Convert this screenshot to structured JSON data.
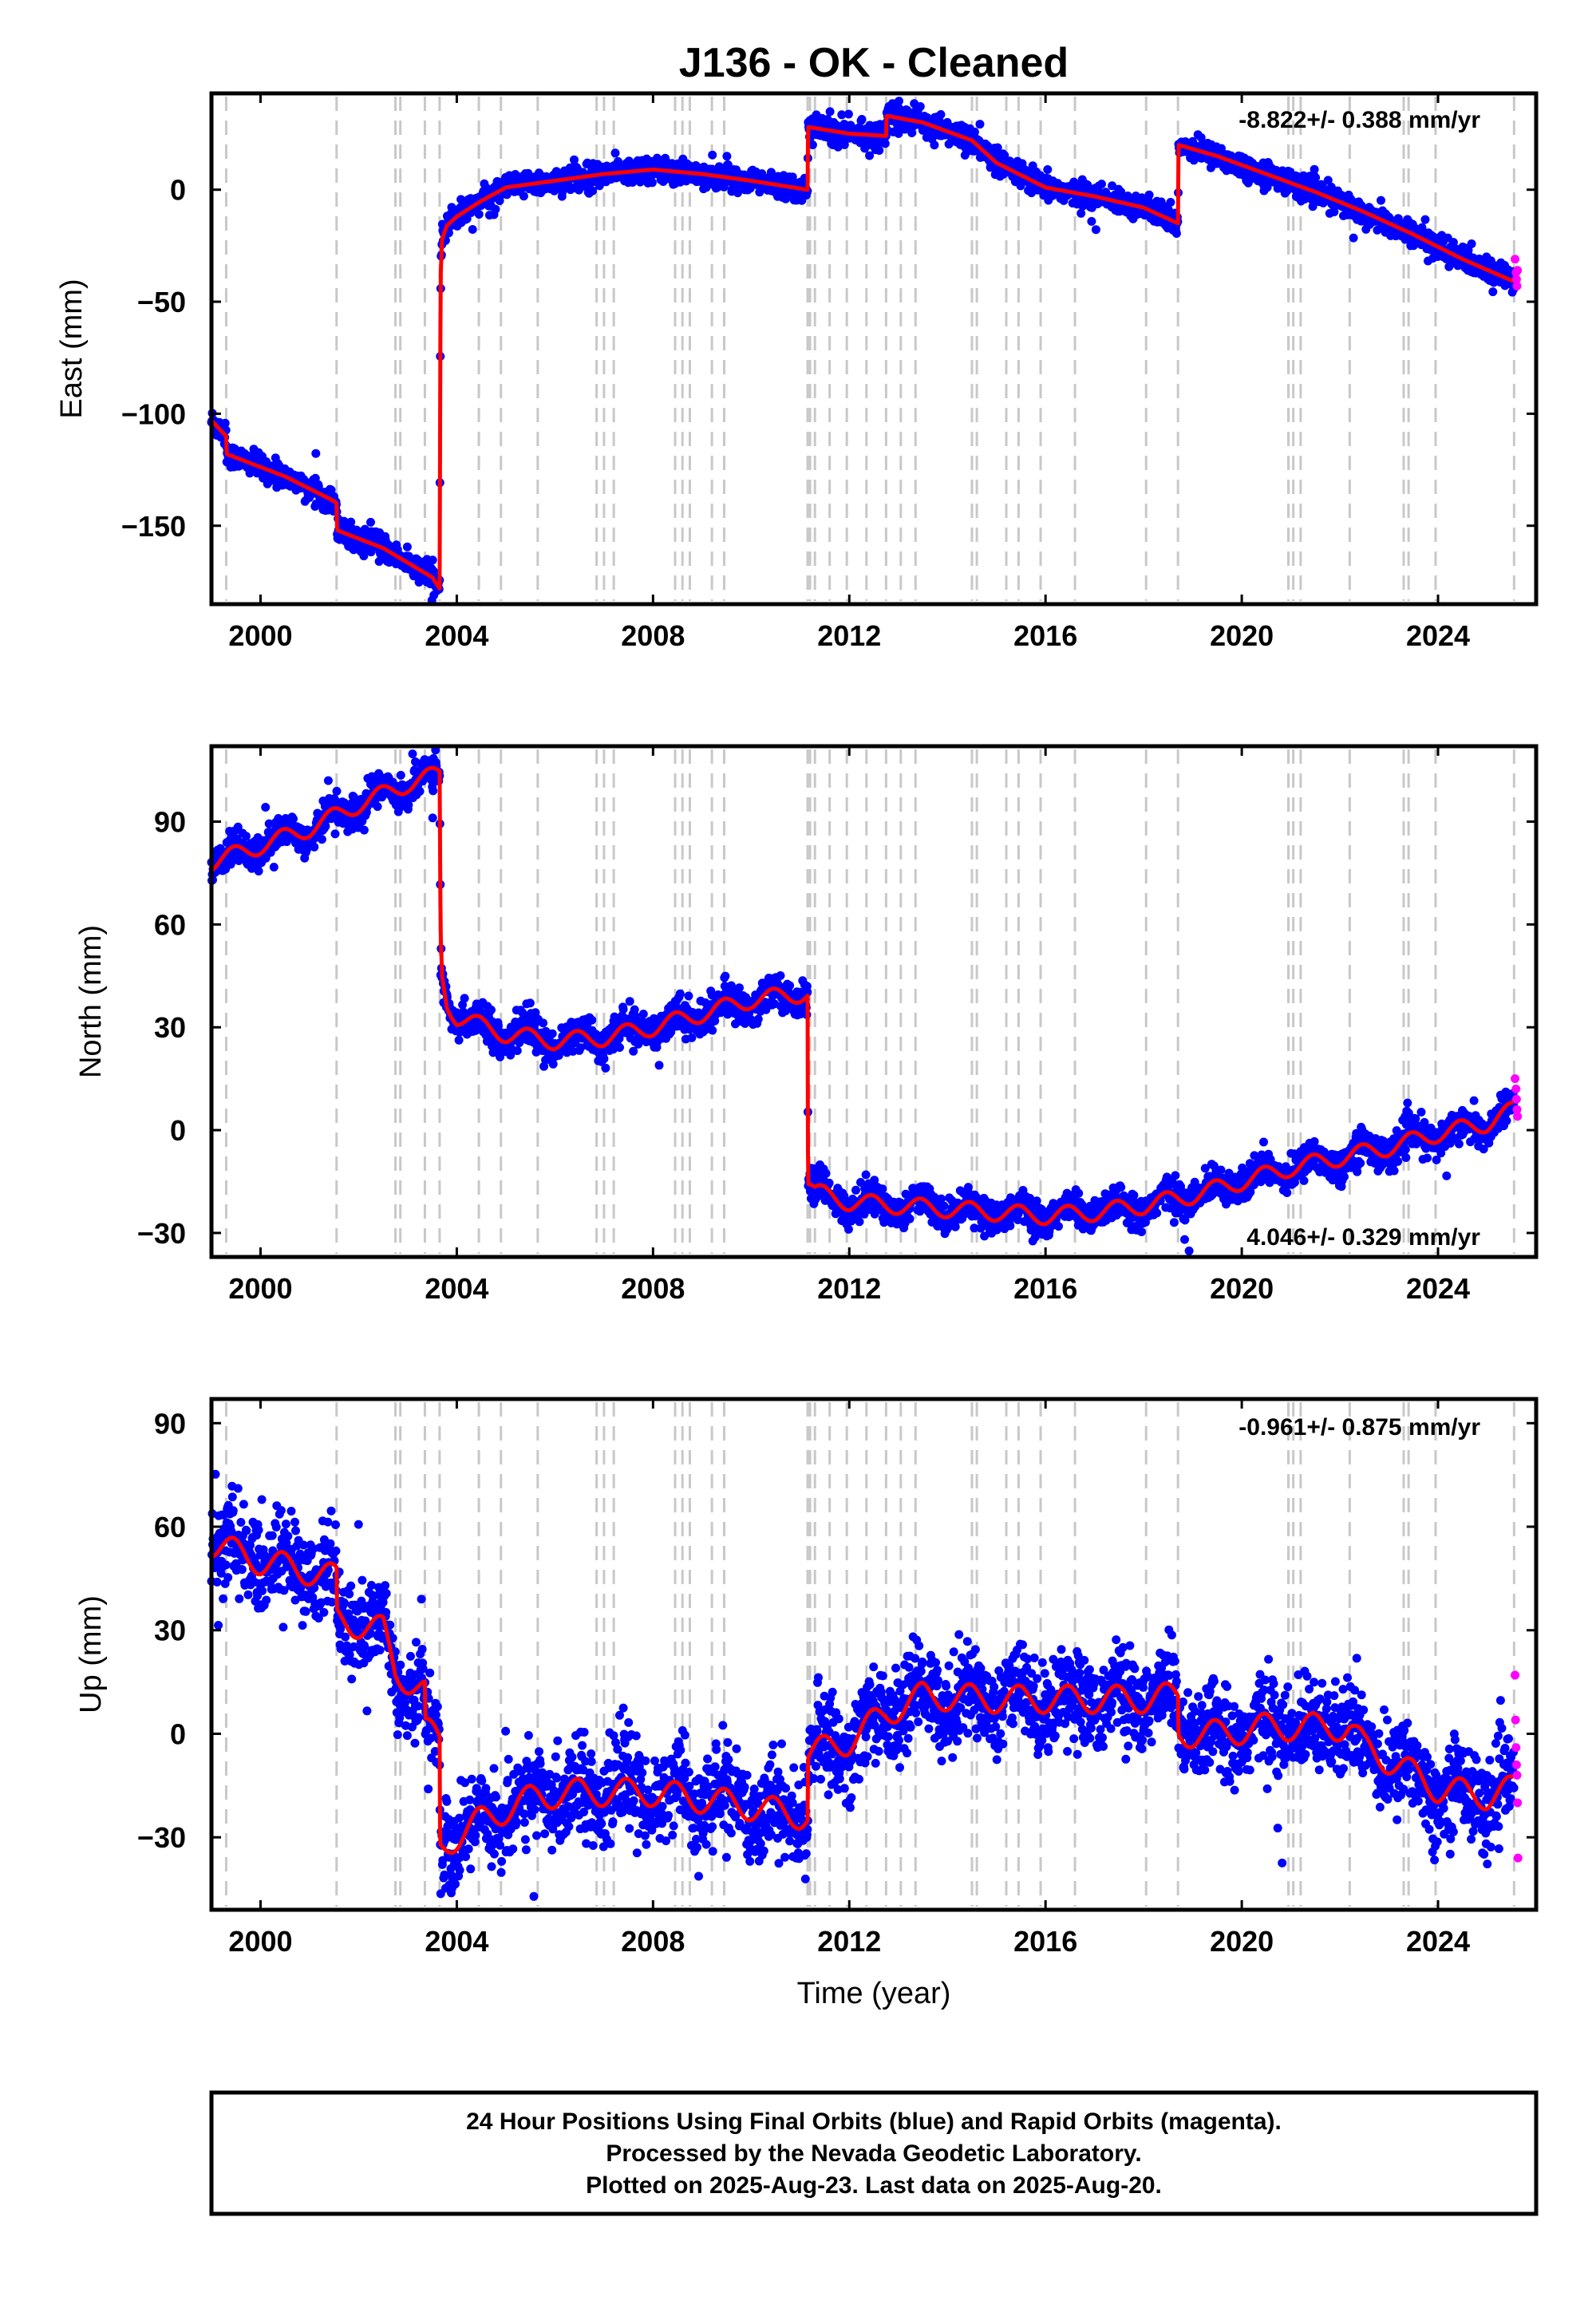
{
  "title": "J136  - OK - Cleaned",
  "xlabel": "Time (year)",
  "x_ticks": [
    2000,
    2004,
    2008,
    2012,
    2016,
    2020,
    2024
  ],
  "xlim": [
    1999.0,
    2026.0
  ],
  "colors": {
    "final_orbits": "#0000ff",
    "rapid_orbits": "#ff00ff",
    "model_fit": "#ff0000",
    "event_lines": "#c8c8c8",
    "frame": "#000000"
  },
  "event_lines_years": [
    1999.3,
    2001.55,
    2002.75,
    2002.85,
    2003.35,
    2003.65,
    2004.45,
    2004.9,
    2005.65,
    2006.85,
    2007.0,
    2007.2,
    2008.45,
    2008.6,
    2008.75,
    2009.2,
    2009.45,
    2011.15,
    2011.2,
    2011.3,
    2011.6,
    2011.95,
    2012.35,
    2012.75,
    2013.05,
    2013.35,
    2014.5,
    2014.6,
    2015.2,
    2015.45,
    2015.9,
    2016.6,
    2018.05,
    2018.7,
    2020.95,
    2021.05,
    2021.2,
    2022.2,
    2023.3,
    2023.4,
    2023.95,
    2025.55
  ],
  "footer": {
    "line1": "24 Hour Positions Using Final Orbits (blue) and Rapid Orbits (magenta).",
    "line2": "Processed by the Nevada Geodetic Laboratory.",
    "line3": "Plotted on 2025-Aug-23. Last data on 2025-Aug-20."
  },
  "chart_data": [
    {
      "type": "scatter",
      "ylabel": "East (mm)",
      "rate_label": "-8.822+/- 0.388 mm/yr",
      "ylim": [
        -185,
        43
      ],
      "y_ticks": [
        0,
        -50,
        -100,
        -150
      ],
      "y_tick_labels": [
        "0",
        "−50",
        "−100",
        "−150"
      ],
      "fit_x": [
        1999.0,
        1999.3,
        1999.31,
        2000.5,
        2001.5,
        2001.55,
        2001.56,
        2002.5,
        2003.5,
        2003.65,
        2003.67,
        2003.7,
        2003.8,
        2004.0,
        2004.5,
        2005.0,
        2006.0,
        2007.0,
        2008.0,
        2009.0,
        2010.0,
        2011.15,
        2011.16,
        2012.0,
        2012.75,
        2012.76,
        2013.5,
        2014.5,
        2015.0,
        2016.0,
        2017.0,
        2018.0,
        2018.7,
        2018.71,
        2019.5,
        2020.5,
        2021.5,
        2022.5,
        2023.5,
        2024.5,
        2025.55
      ],
      "fit_y": [
        -103,
        -110,
        -118,
        -128,
        -139,
        -140,
        -152,
        -160,
        -173,
        -178,
        -40,
        -22,
        -16,
        -12,
        -5,
        1,
        4,
        7,
        9,
        7,
        4,
        0,
        28,
        25,
        24,
        33,
        30,
        22,
        12,
        1,
        -3,
        -8,
        -15,
        20,
        15,
        7,
        -1,
        -10,
        -20,
        -31,
        -41
      ],
      "final_scatter_sd": 2.6,
      "rapid_orbits": {
        "x": [
          2025.57,
          2025.59,
          2025.6,
          2025.61,
          2025.62
        ],
        "y": [
          -31,
          -37,
          -40,
          -43,
          -36
        ]
      }
    },
    {
      "type": "scatter",
      "ylabel": "North (mm)",
      "rate_label": "4.046+/- 0.329 mm/yr",
      "ylim": [
        -37,
        112
      ],
      "y_ticks": [
        90,
        60,
        30,
        0,
        -30
      ],
      "y_tick_labels": [
        "90",
        "60",
        "30",
        "0",
        "−30"
      ],
      "fit_x": [
        1999.0,
        2000.0,
        2001.0,
        2002.0,
        2003.0,
        2003.65,
        2003.67,
        2003.7,
        2003.8,
        2004.0,
        2005.0,
        2006.0,
        2007.0,
        2008.0,
        2009.0,
        2010.0,
        2011.15,
        2011.16,
        2011.3,
        2012.0,
        2013.0,
        2014.0,
        2015.0,
        2016.0,
        2017.0,
        2018.0,
        2019.0,
        2020.0,
        2021.0,
        2022.0,
        2023.0,
        2024.0,
        2025.0,
        2025.55
      ],
      "fit_y": [
        78,
        83,
        88,
        95,
        101,
        104,
        58,
        45,
        37,
        33,
        28,
        26,
        27,
        30,
        34,
        38,
        40,
        -15,
        -18,
        -21,
        -22,
        -23,
        -24,
        -25,
        -24,
        -22,
        -19,
        -15,
        -11,
        -8,
        -5,
        -1,
        2,
        6
      ],
      "seasonal_amp": 2.5,
      "final_scatter_sd": 2.4,
      "rapid_orbits": {
        "x": [
          2025.57,
          2025.59,
          2025.6,
          2025.61,
          2025.62
        ],
        "y": [
          15,
          12,
          9,
          6,
          4
        ]
      }
    },
    {
      "type": "scatter",
      "ylabel": "Up (mm)",
      "rate_label": "-0.961+/- 0.875 mm/yr",
      "ylim": [
        -51,
        97
      ],
      "y_ticks": [
        90,
        60,
        30,
        0,
        -30
      ],
      "y_tick_labels": [
        "90",
        "60",
        "30",
        "0",
        "−30"
      ],
      "fit_x": [
        1999.0,
        2000.0,
        2001.0,
        2001.55,
        2001.56,
        2002.5,
        2002.75,
        2003.35,
        2003.36,
        2003.65,
        2003.66,
        2004.5,
        2005.65,
        2006.5,
        2008.0,
        2009.5,
        2011.15,
        2011.16,
        2012.0,
        2012.75,
        2013.5,
        2015.0,
        2016.5,
        2018.0,
        2018.7,
        2018.71,
        2019.5,
        2020.5,
        2021.5,
        2022.2,
        2022.5,
        2023.3,
        2024.0,
        2025.0,
        2025.55
      ],
      "fit_y": [
        55,
        50,
        47,
        45,
        33,
        30,
        18,
        12,
        1,
        -2,
        -33,
        -25,
        -18,
        -17,
        -17,
        -20,
        -24,
        -6,
        -2,
        6,
        11,
        10,
        10,
        10,
        11,
        0,
        0,
        2,
        2,
        2,
        -4,
        -10,
        -16,
        -18,
        -16
      ],
      "seasonal_amp": 4.0,
      "final_scatter_sd": 6.5,
      "rapid_orbits": {
        "x": [
          2025.57,
          2025.58,
          2025.59,
          2025.6,
          2025.61,
          2025.62,
          2025.63
        ],
        "y": [
          17,
          4,
          -4,
          -9,
          -12,
          -20,
          -36
        ]
      }
    }
  ]
}
